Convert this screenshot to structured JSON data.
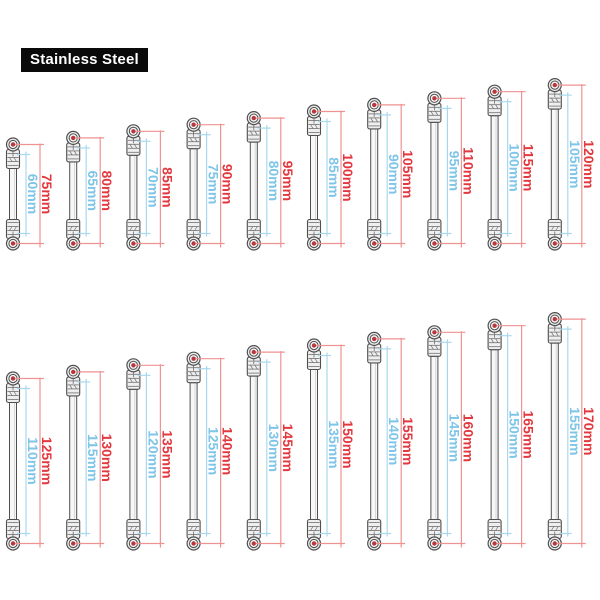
{
  "badge": {
    "label": "Stainless Steel"
  },
  "figure": {
    "type": "product-dimension-diagram",
    "subject": "stainless-steel-linkage-rods",
    "unit": "mm",
    "rows": [
      {
        "rods": [
          {
            "overall_mm": 75,
            "overall_label": "75mm",
            "shaft_mm": 60,
            "shaft_label": "60mm"
          },
          {
            "overall_mm": 80,
            "overall_label": "80mm",
            "shaft_mm": 65,
            "shaft_label": "65mm"
          },
          {
            "overall_mm": 85,
            "overall_label": "85mm",
            "shaft_mm": 70,
            "shaft_label": "70mm"
          },
          {
            "overall_mm": 90,
            "overall_label": "90mm",
            "shaft_mm": 75,
            "shaft_label": "75mm"
          },
          {
            "overall_mm": 95,
            "overall_label": "95mm",
            "shaft_mm": 80,
            "shaft_label": "80mm"
          },
          {
            "overall_mm": 100,
            "overall_label": "100mm",
            "shaft_mm": 85,
            "shaft_label": "85mm"
          },
          {
            "overall_mm": 105,
            "overall_label": "105mm",
            "shaft_mm": 90,
            "shaft_label": "90mm"
          },
          {
            "overall_mm": 110,
            "overall_label": "110mm",
            "shaft_mm": 95,
            "shaft_label": "95mm"
          },
          {
            "overall_mm": 115,
            "overall_label": "115mm",
            "shaft_mm": 100,
            "shaft_label": "100mm"
          },
          {
            "overall_mm": 120,
            "overall_label": "120mm",
            "shaft_mm": 105,
            "shaft_label": "105mm"
          }
        ]
      },
      {
        "rods": [
          {
            "overall_mm": 125,
            "overall_label": "125mm",
            "shaft_mm": 110,
            "shaft_label": "110mm"
          },
          {
            "overall_mm": 130,
            "overall_label": "130mm",
            "shaft_mm": 115,
            "shaft_label": "115mm"
          },
          {
            "overall_mm": 135,
            "overall_label": "135mm",
            "shaft_mm": 120,
            "shaft_label": "120mm"
          },
          {
            "overall_mm": 140,
            "overall_label": "140mm",
            "shaft_mm": 125,
            "shaft_label": "125mm"
          },
          {
            "overall_mm": 145,
            "overall_label": "145mm",
            "shaft_mm": 130,
            "shaft_label": "130mm"
          },
          {
            "overall_mm": 150,
            "overall_label": "150mm",
            "shaft_mm": 135,
            "shaft_label": "135mm"
          },
          {
            "overall_mm": 155,
            "overall_label": "155mm",
            "shaft_mm": 140,
            "shaft_label": "140mm"
          },
          {
            "overall_mm": 160,
            "overall_label": "160mm",
            "shaft_mm": 145,
            "shaft_label": "145mm"
          },
          {
            "overall_mm": 165,
            "overall_label": "165mm",
            "shaft_mm": 150,
            "shaft_label": "150mm"
          },
          {
            "overall_mm": 170,
            "overall_label": "170mm",
            "shaft_mm": 155,
            "shaft_label": "155mm"
          }
        ]
      }
    ],
    "colors": {
      "overall_dim_line": "#ef9292",
      "overall_dim_text": "#e2383f",
      "shaft_dim_line": "#a9d8ee",
      "shaft_dim_text": "#7ec5e8",
      "rod_outline": "#4f4f4f",
      "rod_detail": "#6f6f6f",
      "rod_fill": "#efefef",
      "shaft_fill": "#f7f7f7",
      "ball_center": "#b8383f",
      "badge_bg": "#0a0a0a",
      "badge_text": "#ffffff"
    }
  }
}
